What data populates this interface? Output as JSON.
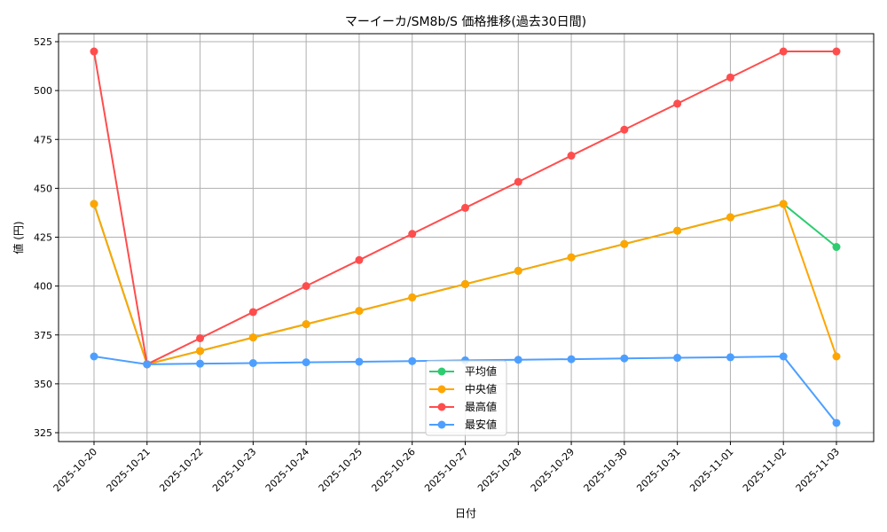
{
  "chart_data": {
    "type": "line",
    "title": "マーイーカ/SM8b/S 価格推移(過去30日間)",
    "xlabel": "日付",
    "ylabel": "値 (円)",
    "ylim": [
      320,
      530
    ],
    "yticks": [
      325,
      350,
      375,
      400,
      425,
      450,
      475,
      500,
      525
    ],
    "grid": true,
    "legend_position": "lower-center",
    "x": [
      "2025-10-20",
      "2025-10-21",
      "2025-10-22",
      "2025-10-23",
      "2025-10-24",
      "2025-10-25",
      "2025-10-26",
      "2025-10-27",
      "2025-10-28",
      "2025-10-29",
      "2025-10-30",
      "2025-10-31",
      "2025-11-01",
      "2025-11-02",
      "2025-11-03"
    ],
    "series": [
      {
        "name": "平均値",
        "color": "#2ecc71",
        "values": [
          442,
          360,
          366.8,
          373.7,
          380.5,
          387.3,
          394.2,
          401,
          407.8,
          414.7,
          421.5,
          428.3,
          435.2,
          442,
          420
        ]
      },
      {
        "name": "中央値",
        "color": "#ffa500",
        "values": [
          442,
          360,
          366.8,
          373.7,
          380.5,
          387.3,
          394.2,
          401,
          407.8,
          414.7,
          421.5,
          428.3,
          435.2,
          442,
          364
        ]
      },
      {
        "name": "最高値",
        "color": "#ff4d4d",
        "values": [
          520,
          360,
          373.3,
          386.7,
          400,
          413.3,
          426.7,
          440,
          453.3,
          466.7,
          480,
          493.3,
          506.7,
          520,
          520
        ]
      },
      {
        "name": "最安値",
        "color": "#4d9fff",
        "values": [
          364,
          360,
          360.3,
          360.6,
          361,
          361.3,
          361.6,
          362,
          362.3,
          362.6,
          363,
          363.3,
          363.6,
          364,
          330
        ]
      }
    ]
  }
}
